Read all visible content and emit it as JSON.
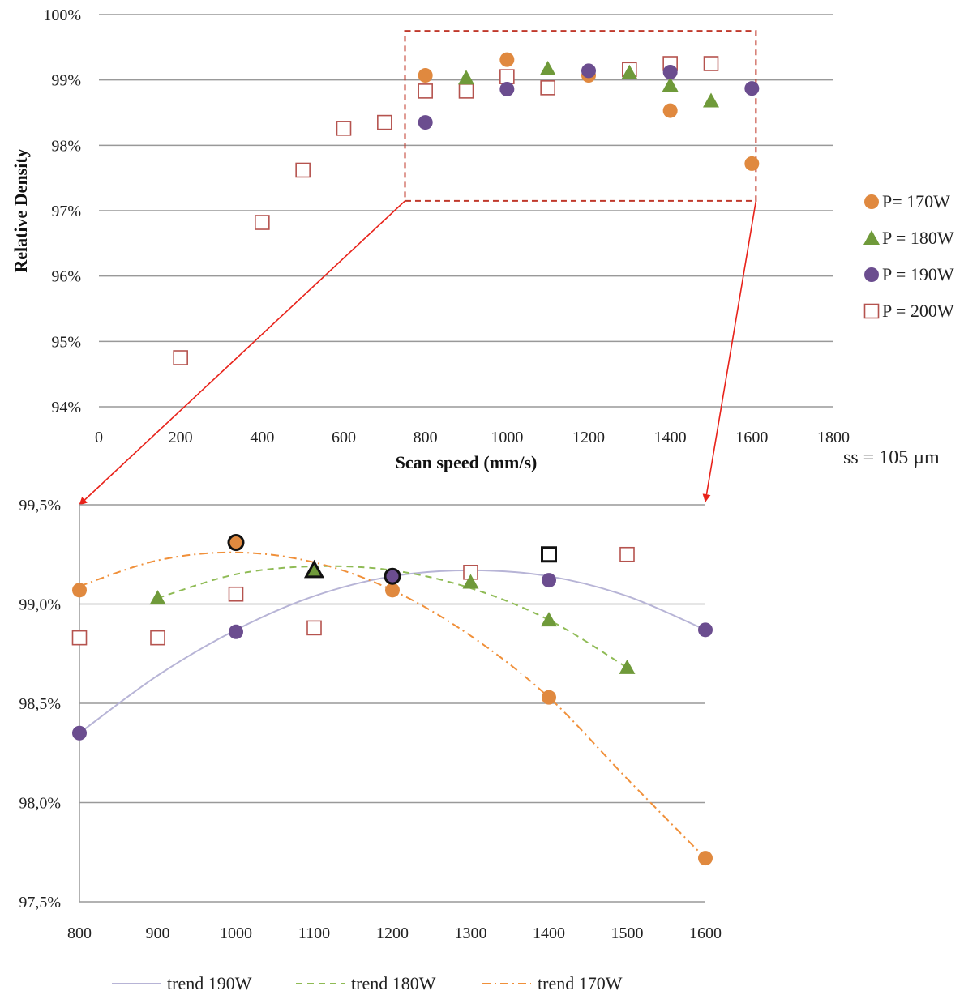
{
  "colors": {
    "p170": "#e0893f",
    "p180": "#6f9a3a",
    "p190": "#6b4d8f",
    "p200": "#b5534e",
    "grid": "#999999",
    "zoom_box": "#c0392b",
    "arrow": "#e8221a",
    "trend190": "#b7b4d6",
    "trend180": "#8fbb55",
    "trend170": "#f0903a"
  },
  "chart_data": [
    {
      "type": "scatter",
      "title": "",
      "xlabel": "Scan speed (mm/s)",
      "ylabel": "Relative Density",
      "xlim": [
        0,
        1800
      ],
      "ylim": [
        94,
        100
      ],
      "x_ticks": [
        0,
        200,
        400,
        600,
        800,
        1000,
        1200,
        1400,
        1600,
        1800
      ],
      "x_tick_labels": [
        "0",
        "200",
        "400",
        "600",
        "800",
        "1000",
        "1200",
        "1400",
        "1600",
        "1800"
      ],
      "y_ticks": [
        94,
        95,
        96,
        97,
        98,
        99,
        100
      ],
      "y_tick_labels": [
        "94%",
        "95%",
        "96%",
        "97%",
        "98%",
        "99%",
        "100%"
      ],
      "grid": "horizontal",
      "legend": "right",
      "zoom_box": {
        "x": [
          750,
          1610
        ],
        "y": [
          97.15,
          99.75
        ]
      },
      "annotation": "ss = 105 µm",
      "series": [
        {
          "name": "P= 170W",
          "key": "p170",
          "marker": "circle",
          "x": [
            800,
            1000,
            1200,
            1400,
            1600
          ],
          "y": [
            99.07,
            99.31,
            99.07,
            98.53,
            97.72
          ]
        },
        {
          "name": "P = 180W",
          "key": "p180",
          "marker": "triangle",
          "x": [
            900,
            1100,
            1300,
            1400,
            1500
          ],
          "y": [
            99.03,
            99.17,
            99.11,
            98.92,
            98.68
          ]
        },
        {
          "name": "P = 190W",
          "key": "p190",
          "marker": "circle",
          "x": [
            800,
            1000,
            1200,
            1400,
            1600
          ],
          "y": [
            98.35,
            98.86,
            99.14,
            99.12,
            98.87
          ]
        },
        {
          "name": "P = 200W",
          "key": "p200",
          "marker": "square-open",
          "x": [
            200,
            400,
            500,
            600,
            700,
            800,
            900,
            1000,
            1100,
            1300,
            1400,
            1500
          ],
          "y": [
            94.75,
            96.82,
            97.62,
            98.26,
            98.35,
            98.83,
            98.83,
            99.05,
            98.88,
            99.16,
            99.25,
            99.25
          ]
        }
      ]
    },
    {
      "type": "scatter",
      "title": "",
      "xlabel": "",
      "ylabel": "",
      "xlim": [
        800,
        1600
      ],
      "ylim": [
        97.5,
        99.5
      ],
      "x_ticks": [
        800,
        900,
        1000,
        1100,
        1200,
        1300,
        1400,
        1500,
        1600
      ],
      "x_tick_labels": [
        "800",
        "900",
        "1000",
        "1100",
        "1200",
        "1300",
        "1400",
        "1500",
        "1600"
      ],
      "y_ticks": [
        97.5,
        98.0,
        98.5,
        99.0,
        99.5
      ],
      "y_tick_labels": [
        "97,5%",
        "98,0%",
        "98,5%",
        "99,0%",
        "99,5%"
      ],
      "grid": "horizontal",
      "legend": "bottom",
      "series": [
        {
          "key": "p170",
          "marker": "circle",
          "x": [
            800,
            1000,
            1200,
            1400,
            1600
          ],
          "y": [
            99.07,
            99.31,
            99.07,
            98.53,
            97.72
          ]
        },
        {
          "key": "p180",
          "marker": "triangle",
          "x": [
            900,
            1100,
            1300,
            1400,
            1500
          ],
          "y": [
            99.03,
            99.17,
            99.11,
            98.92,
            98.68
          ]
        },
        {
          "key": "p190",
          "marker": "circle",
          "x": [
            800,
            1000,
            1200,
            1400,
            1600
          ],
          "y": [
            98.35,
            98.86,
            99.14,
            99.12,
            98.87
          ]
        },
        {
          "key": "p200",
          "marker": "square-open",
          "x": [
            800,
            900,
            1000,
            1100,
            1300,
            1500
          ],
          "y": [
            98.83,
            98.83,
            99.05,
            98.88,
            99.16,
            99.25
          ]
        }
      ],
      "highlights": [
        {
          "key": "p170",
          "marker": "circle",
          "x": 1000,
          "y": 99.31
        },
        {
          "key": "p180",
          "marker": "triangle",
          "x": 1100,
          "y": 99.17
        },
        {
          "key": "p190",
          "marker": "circle",
          "x": 1200,
          "y": 99.14
        },
        {
          "key": "p200",
          "marker": "square-open",
          "x": 1400,
          "y": 99.25
        }
      ],
      "trends": [
        {
          "name": "trend 190W",
          "key": "trend190",
          "dash": "solid",
          "x": [
            800,
            900,
            1000,
            1100,
            1200,
            1300,
            1400,
            1500,
            1600
          ],
          "y": [
            98.35,
            98.64,
            98.87,
            99.04,
            99.14,
            99.17,
            99.14,
            99.04,
            98.87
          ]
        },
        {
          "name": "trend 180W",
          "key": "trend180",
          "dash": "dashed",
          "x": [
            900,
            1000,
            1100,
            1200,
            1300,
            1400,
            1500
          ],
          "y": [
            99.03,
            99.15,
            99.19,
            99.17,
            99.08,
            98.92,
            98.68
          ]
        },
        {
          "name": "trend 170W",
          "key": "trend170",
          "dash": "dashdot",
          "x": [
            800,
            900,
            1000,
            1100,
            1200,
            1300,
            1400,
            1500,
            1600
          ],
          "y": [
            99.09,
            99.22,
            99.26,
            99.21,
            99.07,
            98.84,
            98.53,
            98.12,
            97.72
          ]
        }
      ]
    }
  ]
}
